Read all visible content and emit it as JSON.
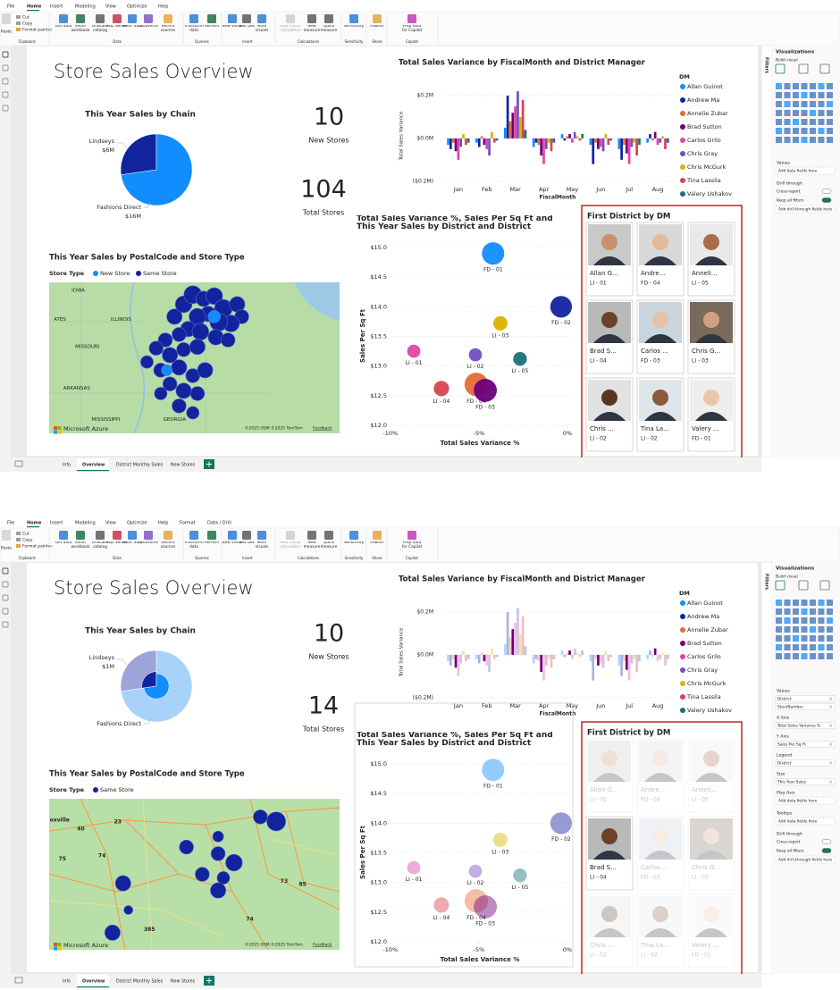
{
  "ribbon": {
    "paste": "Paste",
    "clipboard": [
      "Cut",
      "Copy",
      "Format painter"
    ],
    "buttons": [
      "Get data",
      "Excel workbook",
      "OneLake catalog",
      "SQL Server",
      "Enter data",
      "Dataverse",
      "Recent sources",
      "Transform data",
      "Refresh",
      "New visual",
      "Text box",
      "More visuals",
      "New visual calculation",
      "New measure",
      "Quick measure",
      "Sensitivity",
      "Publish",
      "Prep data for Copilot"
    ],
    "groups": [
      "Clipboard",
      "Data",
      "Queries",
      "Insert",
      "Calculations",
      "Sensitivity",
      "Share",
      "Copilot"
    ]
  },
  "report_title": "Store Sales Overview",
  "pie_title": "This Year Sales by Chain",
  "map_title": "This Year Sales by PostalCode and Store Type",
  "map_legend_title": "Store Type",
  "column_chart": {
    "type": "bar",
    "title": "Total Sales Variance by FiscalMonth and District Manager",
    "categories": [
      "Jan",
      "Feb",
      "Mar",
      "Apr",
      "May",
      "Jun",
      "Jul",
      "Aug"
    ],
    "series": [
      {
        "name": "Allan Guinot",
        "color": "#118DFF",
        "values": [
          -0.03,
          -0.02,
          0.05,
          -0.04,
          0.02,
          -0.03,
          -0.05,
          -0.02
        ]
      },
      {
        "name": "Andrew Ma",
        "color": "#12239E",
        "values": [
          -0.05,
          -0.04,
          0.2,
          -0.02,
          -0.01,
          -0.12,
          -0.1,
          0.02
        ]
      },
      {
        "name": "Annelie Zubar",
        "color": "#E66C37",
        "values": [
          -0.02,
          0.01,
          0.08,
          -0.03,
          0.01,
          -0.02,
          -0.03,
          -0.01
        ]
      },
      {
        "name": "Brad Sutton",
        "color": "#6B007B",
        "values": [
          -0.06,
          -0.03,
          0.12,
          -0.08,
          0.02,
          -0.05,
          -0.07,
          0.03
        ]
      },
      {
        "name": "Carlos Grilo",
        "color": "#E044A7",
        "values": [
          -0.1,
          -0.05,
          0.15,
          -0.12,
          -0.02,
          -0.04,
          -0.12,
          -0.03
        ]
      },
      {
        "name": "Chris Gray",
        "color": "#744EC2",
        "values": [
          -0.04,
          -0.08,
          0.22,
          -0.05,
          0.03,
          -0.06,
          -0.04,
          -0.02
        ]
      },
      {
        "name": "Chris McGurk",
        "color": "#D9B300",
        "values": [
          0.02,
          0.03,
          0.1,
          -0.02,
          0.01,
          0.02,
          -0.02,
          0.01
        ]
      },
      {
        "name": "Tina Lassila",
        "color": "#D64550",
        "values": [
          -0.03,
          -0.02,
          0.18,
          -0.06,
          -0.01,
          -0.03,
          -0.08,
          -0.05
        ]
      },
      {
        "name": "Valery Ushakov",
        "color": "#197278",
        "values": [
          -0.02,
          -0.01,
          0.04,
          -0.02,
          0.02,
          -0.01,
          -0.03,
          -0.02
        ]
      }
    ],
    "ylim": [
      -0.23,
      0.25
    ],
    "yticks": [
      {
        "value": -0.2,
        "label": "($0.2M)"
      },
      {
        "value": 0,
        "label": "$0.0M"
      },
      {
        "value": 0.2,
        "label": "$0.2M"
      }
    ],
    "y_label": "Total Sales Variance",
    "x_label": "FiscalMonth",
    "legend_title": "DM"
  },
  "scatter": {
    "type": "scatter",
    "title": "Total Sales Variance %, Sales Per Sq Ft and This Year Sales by District and District",
    "points": [
      {
        "label": "FD - 01",
        "x": -4.2,
        "y": 14.9,
        "size": 3.2,
        "color": "#118DFF"
      },
      {
        "label": "FD - 02",
        "x": -0.36,
        "y": 14.0,
        "size": 3.0,
        "color": "#12239E"
      },
      {
        "label": "LI - 03",
        "x": -3.79,
        "y": 13.72,
        "size": 1.3,
        "color": "#D9B300"
      },
      {
        "label": "LI - 02",
        "x": -5.2,
        "y": 13.19,
        "size": 1.1,
        "color": "#744EC2"
      },
      {
        "label": "LI - 05",
        "x": -2.68,
        "y": 13.12,
        "size": 1.2,
        "color": "#197278"
      },
      {
        "label": "LI - 01",
        "x": -8.68,
        "y": 13.25,
        "size": 1.1,
        "color": "#E044A7"
      },
      {
        "label": "FD - 04",
        "x": -5.15,
        "y": 12.69,
        "size": 3.5,
        "color": "#E66C37"
      },
      {
        "label": "LI - 04",
        "x": -7.12,
        "y": 12.62,
        "size": 1.5,
        "color": "#D64550"
      },
      {
        "label": "FD - 03",
        "x": -4.64,
        "y": 12.59,
        "size": 3.4,
        "color": "#6B007B"
      }
    ],
    "xlim": [
      -10.85,
      0.25
    ],
    "xticks": [
      {
        "value": -10,
        "label": "-10%"
      },
      {
        "value": -5,
        "label": "-5%"
      },
      {
        "value": 0,
        "label": "0%"
      }
    ],
    "ylim": [
      12,
      15
    ],
    "yticks": [
      {
        "value": 12,
        "label": "$12.0"
      },
      {
        "value": 12.5,
        "label": "$12.5"
      },
      {
        "value": 13,
        "label": "$13.0"
      },
      {
        "value": 13.5,
        "label": "$13.5"
      },
      {
        "value": 14,
        "label": "$14.0"
      },
      {
        "value": 14.5,
        "label": "$14.5"
      },
      {
        "value": 15,
        "label": "$15.0"
      }
    ],
    "x_label": "Total Sales Variance %",
    "y_label": "Sales Per Sq Ft"
  },
  "dm_title": "First District by DM",
  "dm_cards": [
    {
      "name": "Allan G...",
      "district": "LI - 01"
    },
    {
      "name": "Andre...",
      "district": "FD - 04"
    },
    {
      "name": "Anneli...",
      "district": "LI - 05"
    },
    {
      "name": "Brad S...",
      "district": "LI - 04"
    },
    {
      "name": "Carlos ...",
      "district": "FD - 03"
    },
    {
      "name": "Chris G...",
      "district": "LI - 03"
    },
    {
      "name": "Chris ...",
      "district": "LI - 02"
    },
    {
      "name": "Tina La...",
      "district": "LI - 02"
    },
    {
      "name": "Valery ...",
      "district": "FD - 01"
    }
  ],
  "tabs": [
    "Info",
    "Overview",
    "District Monthly Sales",
    "New Stores"
  ],
  "screens": [
    {
      "menu": [
        "File",
        "Home",
        "Insert",
        "Modeling",
        "View",
        "Optimize",
        "Help"
      ],
      "pie": {
        "slices": [
          {
            "name": "Lindseys",
            "value": 6,
            "value_label": "$6M",
            "color": "#12239E"
          },
          {
            "name": "Fashions Direct",
            "value": 16,
            "value_label": "$16M",
            "color": "#118DFF"
          }
        ]
      },
      "cards": [
        {
          "value": 10,
          "label": "New Stores"
        },
        {
          "value": 104,
          "label": "Total Stores"
        }
      ],
      "map": {
        "legend": [
          {
            "name": "New Store",
            "color": "#118DFF"
          },
          {
            "name": "Same Store",
            "color": "#12239E"
          }
        ],
        "lon": [
          -96,
          -77
        ],
        "lat": [
          32,
          43
        ],
        "labels": [
          {
            "text": "IOWA",
            "lon": -94.1,
            "lat": 42.4
          },
          {
            "text": "ILLINOIS",
            "lon": -91.3,
            "lat": 40.3
          },
          {
            "text": "ATES",
            "lon": -95.3,
            "lat": 40.3
          },
          {
            "text": "MISSOURI",
            "lon": -93.5,
            "lat": 38.3
          },
          {
            "text": "ARKANSAS",
            "lon": -94.2,
            "lat": 35.3
          },
          {
            "text": "MISSISSIPPI",
            "lon": -92.3,
            "lat": 33.0
          },
          {
            "text": "GEORGIA",
            "lon": -87.8,
            "lat": 33.0
          }
        ],
        "bubbles": [
          {
            "lon": -88.4,
            "lat": 38.8,
            "size": 2.5,
            "type": "Same Store"
          },
          {
            "lon": -87.8,
            "lat": 40.5,
            "size": 3,
            "type": "Same Store"
          },
          {
            "lon": -87.2,
            "lat": 41.4,
            "size": 3.5,
            "type": "Same Store"
          },
          {
            "lon": -86.6,
            "lat": 42.1,
            "size": 4,
            "type": "Same Store"
          },
          {
            "lon": -85.9,
            "lat": 41.8,
            "size": 3,
            "type": "Same Store"
          },
          {
            "lon": -85.2,
            "lat": 42.0,
            "size": 3.5,
            "type": "Same Store"
          },
          {
            "lon": -84.6,
            "lat": 41.1,
            "size": 4,
            "type": "Same Store"
          },
          {
            "lon": -83.7,
            "lat": 41.4,
            "size": 3,
            "type": "Same Store"
          },
          {
            "lon": -83.4,
            "lat": 40.5,
            "size": 2.5,
            "type": "Same Store"
          },
          {
            "lon": -84.1,
            "lat": 40.0,
            "size": 3.5,
            "type": "Same Store"
          },
          {
            "lon": -84.9,
            "lat": 40.1,
            "size": 4,
            "type": "Same Store"
          },
          {
            "lon": -85.6,
            "lat": 40.7,
            "size": 3,
            "type": "Same Store"
          },
          {
            "lon": -86.3,
            "lat": 40.5,
            "size": 3.5,
            "type": "Same Store"
          },
          {
            "lon": -86.9,
            "lat": 39.6,
            "size": 3,
            "type": "Same Store"
          },
          {
            "lon": -87.5,
            "lat": 39.2,
            "size": 2.5,
            "type": "Same Store"
          },
          {
            "lon": -86.1,
            "lat": 39.4,
            "size": 3.5,
            "type": "Same Store"
          },
          {
            "lon": -85.1,
            "lat": 39.0,
            "size": 3,
            "type": "Same Store"
          },
          {
            "lon": -84.3,
            "lat": 38.8,
            "size": 2.5,
            "type": "Same Store"
          },
          {
            "lon": -89.0,
            "lat": 38.2,
            "size": 2.5,
            "type": "Same Store"
          },
          {
            "lon": -88.1,
            "lat": 37.7,
            "size": 3,
            "type": "Same Store"
          },
          {
            "lon": -87.2,
            "lat": 38.1,
            "size": 2.5,
            "type": "Same Store"
          },
          {
            "lon": -86.3,
            "lat": 38.3,
            "size": 3,
            "type": "Same Store"
          },
          {
            "lon": -89.6,
            "lat": 37.2,
            "size": 2,
            "type": "Same Store"
          },
          {
            "lon": -88.7,
            "lat": 36.6,
            "size": 2.5,
            "type": "Same Store"
          },
          {
            "lon": -87.5,
            "lat": 36.8,
            "size": 3,
            "type": "Same Store"
          },
          {
            "lon": -86.6,
            "lat": 36.2,
            "size": 2.5,
            "type": "Same Store"
          },
          {
            "lon": -85.8,
            "lat": 36.6,
            "size": 3,
            "type": "Same Store"
          },
          {
            "lon": -88.1,
            "lat": 35.6,
            "size": 2.5,
            "type": "Same Store"
          },
          {
            "lon": -87.2,
            "lat": 35.1,
            "size": 3,
            "type": "Same Store"
          },
          {
            "lon": -86.3,
            "lat": 34.9,
            "size": 2.5,
            "type": "Same Store"
          },
          {
            "lon": -88.7,
            "lat": 34.9,
            "size": 2,
            "type": "Same Store"
          },
          {
            "lon": -87.5,
            "lat": 34.0,
            "size": 2.5,
            "type": "Same Store"
          },
          {
            "lon": -86.6,
            "lat": 33.5,
            "size": 2,
            "type": "Same Store"
          },
          {
            "lon": -85.2,
            "lat": 40.5,
            "size": 2,
            "type": "New Store"
          },
          {
            "lon": -88.3,
            "lat": 36.6,
            "size": 1.5,
            "type": "New Store"
          }
        ],
        "brand": "Microsoft Azure",
        "attribution": "©2025 OSM ©2025 TomTom",
        "feedback": "Feedback"
      },
      "pane": {
        "title": "Visualizations",
        "subtitle": "Build visual",
        "filters": "Filters",
        "sections": [
          {
            "title": "Values",
            "placeholder": "Add data fields here"
          },
          {
            "title": "Drill through",
            "toggles": [
              "Cross-report",
              "Keep all filters"
            ],
            "placeholder": "Add drill-through fields here"
          }
        ]
      }
    },
    {
      "menu": [
        "File",
        "Home",
        "Insert",
        "Modeling",
        "View",
        "Optimize",
        "Help",
        "Format",
        "Data / Drill"
      ],
      "selected_dm": "Brad Sutton",
      "pie": {
        "slices": [
          {
            "name": "Lindseys",
            "value": 6,
            "color": "#9ea3d8",
            "highlight": 1,
            "highlight_label": "$1M",
            "highlight_color": "#12239E"
          },
          {
            "name": "Fashions Direct",
            "value": 16,
            "color": "#a9d2fb",
            "highlight": 2,
            "highlight_color": "#118DFF"
          }
        ]
      },
      "cards": [
        {
          "value": 10,
          "label": "New Stores"
        },
        {
          "value": 14,
          "label": "Total Stores"
        }
      ],
      "map": {
        "legend": [
          {
            "name": "Same Store",
            "color": "#12239E"
          }
        ],
        "lon": [
          -84.5,
          -79
        ],
        "lat": [
          34,
          37
        ],
        "labels": [
          {
            "text": "oxville",
            "lon": -84.3,
            "lat": 36.57
          },
          {
            "text": "40",
            "lon": -83.9,
            "lat": 36.4
          },
          {
            "text": "23",
            "lon": -83.2,
            "lat": 36.54
          },
          {
            "text": "75",
            "lon": -84.25,
            "lat": 35.8
          },
          {
            "text": "74",
            "lon": -83.5,
            "lat": 35.86
          },
          {
            "text": "85",
            "lon": -79.7,
            "lat": 35.3
          },
          {
            "text": "73",
            "lon": -80.05,
            "lat": 35.36
          },
          {
            "text": "385",
            "lon": -82.6,
            "lat": 34.4
          },
          {
            "text": "74",
            "lon": -80.7,
            "lat": 34.6
          }
        ],
        "bubbles": [
          {
            "lon": -80.2,
            "lat": 36.55,
            "size": 4.5,
            "type": "Same Store"
          },
          {
            "lon": -80.5,
            "lat": 36.64,
            "size": 2.5,
            "type": "Same Store"
          },
          {
            "lon": -81.3,
            "lat": 36.25,
            "size": 1.5,
            "type": "Same Store"
          },
          {
            "lon": -81.9,
            "lat": 36.04,
            "size": 2.5,
            "type": "Same Store"
          },
          {
            "lon": -81.3,
            "lat": 35.91,
            "size": 2.5,
            "type": "Same Store"
          },
          {
            "lon": -81.0,
            "lat": 35.73,
            "size": 3.5,
            "type": "Same Store"
          },
          {
            "lon": -81.6,
            "lat": 35.5,
            "size": 2.5,
            "type": "Same Store"
          },
          {
            "lon": -81.2,
            "lat": 35.43,
            "size": 2,
            "type": "Same Store"
          },
          {
            "lon": -81.3,
            "lat": 35.18,
            "size": 3,
            "type": "Same Store"
          },
          {
            "lon": -83.1,
            "lat": 35.32,
            "size": 3,
            "type": "Same Store"
          },
          {
            "lon": -83.0,
            "lat": 34.79,
            "size": 1,
            "type": "Same Store"
          },
          {
            "lon": -83.3,
            "lat": 34.34,
            "size": 3,
            "type": "Same Store"
          }
        ],
        "brand": "Microsoft Azure",
        "attribution": "©2025 OSM ©2025 TomTom",
        "feedback": "Feedback"
      },
      "pane": {
        "title": "Visualizations",
        "subtitle": "Build visual",
        "filters": "Filters",
        "sections": [
          {
            "title": "Values",
            "fields": [
              "District",
              "StoreNumber"
            ]
          },
          {
            "title": "X Axis",
            "fields": [
              "Total Sales Variance %"
            ]
          },
          {
            "title": "Y Axis",
            "fields": [
              "Sales Per Sq Ft"
            ]
          },
          {
            "title": "Legend",
            "fields": [
              "District"
            ]
          },
          {
            "title": "Size",
            "fields": [
              "This Year Sales"
            ]
          },
          {
            "title": "Play Axis",
            "placeholder": "Add data fields here"
          },
          {
            "title": "Tooltips",
            "placeholder": "Add data fields here"
          },
          {
            "title": "Drill through",
            "toggles": [
              "Cross-report",
              "Keep all filters"
            ],
            "placeholder": "Add drill-through fields here"
          }
        ]
      }
    }
  ]
}
